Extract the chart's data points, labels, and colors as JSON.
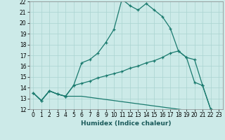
{
  "xlabel": "Humidex (Indice chaleur)",
  "background_color": "#cceae8",
  "line_color": "#1a7a6e",
  "grid_color": "#aad4d0",
  "x_values": [
    0,
    1,
    2,
    3,
    4,
    5,
    6,
    7,
    8,
    9,
    10,
    11,
    12,
    13,
    14,
    15,
    16,
    17,
    18,
    19,
    20,
    21,
    22,
    23
  ],
  "line1": [
    13.5,
    12.8,
    13.7,
    13.4,
    13.2,
    14.2,
    16.3,
    16.6,
    17.2,
    18.2,
    19.4,
    22.2,
    21.6,
    21.2,
    21.8,
    21.2,
    20.6,
    19.5,
    17.4,
    16.8,
    14.5,
    14.2,
    12.0,
    11.8
  ],
  "line2": [
    13.5,
    12.8,
    13.7,
    13.4,
    13.2,
    14.2,
    14.4,
    14.6,
    14.9,
    15.1,
    15.3,
    15.5,
    15.8,
    16.0,
    16.3,
    16.5,
    16.8,
    17.2,
    17.4,
    16.8,
    16.6,
    14.2,
    12.0,
    11.8
  ],
  "line3": [
    13.5,
    12.8,
    13.7,
    13.4,
    13.2,
    13.2,
    13.2,
    13.1,
    13.0,
    12.9,
    12.8,
    12.7,
    12.6,
    12.5,
    12.4,
    12.3,
    12.2,
    12.1,
    12.0,
    11.9,
    11.8,
    11.7,
    11.6,
    11.8
  ],
  "ylim": [
    12,
    22
  ],
  "yticks": [
    12,
    13,
    14,
    15,
    16,
    17,
    18,
    19,
    20,
    21,
    22
  ],
  "xticks": [
    0,
    1,
    2,
    3,
    4,
    5,
    6,
    7,
    8,
    9,
    10,
    11,
    12,
    13,
    14,
    15,
    16,
    17,
    18,
    19,
    20,
    21,
    22,
    23
  ]
}
